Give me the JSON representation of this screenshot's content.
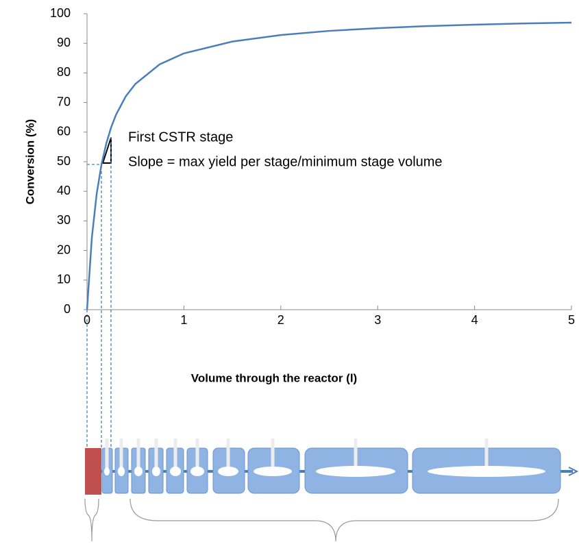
{
  "chart_data": {
    "type": "line",
    "annotations": [
      "First CSTR stage",
      "Slope = max yield per stage/minimum stage volume"
    ],
    "xlabel": "Volume through the reactor (l)",
    "ylabel": "Conversion (%)",
    "x": [
      0,
      0.05,
      0.1,
      0.15,
      0.2,
      0.25,
      0.3,
      0.4,
      0.5,
      0.75,
      1,
      1.5,
      2,
      2.5,
      3,
      3.5,
      4,
      4.5,
      5
    ],
    "values": [
      0,
      24.4,
      39.2,
      49.2,
      56.3,
      61.7,
      65.9,
      72.1,
      76.3,
      82.9,
      86.6,
      90.6,
      92.8,
      94.2,
      95.1,
      95.8,
      96.3,
      96.7,
      97.0
    ],
    "color": "#4a7ebb",
    "xlim": [
      0,
      5
    ],
    "xticks": [
      0,
      1,
      2,
      3,
      4,
      5
    ],
    "ylim": [
      0,
      100
    ],
    "yticks": [
      0,
      10,
      20,
      30,
      40,
      50,
      60,
      70,
      80,
      90,
      100
    ]
  }
}
